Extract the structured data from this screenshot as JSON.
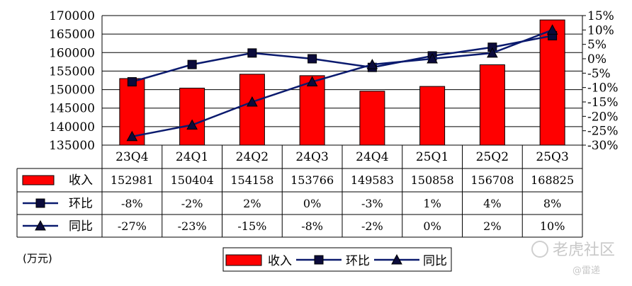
{
  "chart_data": {
    "type": "bar",
    "categories": [
      "23Q4",
      "24Q1",
      "24Q2",
      "24Q3",
      "24Q4",
      "25Q1",
      "25Q2",
      "25Q3"
    ],
    "series": [
      {
        "name": "收入",
        "type": "bar",
        "axis": "left",
        "color": "#ff0000",
        "values": [
          152981,
          150404,
          154158,
          153766,
          149583,
          150858,
          156708,
          168825
        ]
      },
      {
        "name": "环比",
        "type": "line",
        "axis": "right",
        "marker": "square",
        "color": "#0a1a6e",
        "values": [
          -8,
          -2,
          2,
          0,
          -3,
          1,
          4,
          8
        ]
      },
      {
        "name": "同比",
        "type": "line",
        "axis": "right",
        "marker": "triangle",
        "color": "#0a1a6e",
        "values": [
          -27,
          -23,
          -15,
          -8,
          -2,
          0,
          2,
          10
        ]
      }
    ],
    "y_left": {
      "min": 135000,
      "max": 170000,
      "step": 5000,
      "ticks": [
        "135000",
        "140000",
        "145000",
        "150000",
        "155000",
        "160000",
        "165000",
        "170000"
      ]
    },
    "y_right": {
      "min": -30,
      "max": 15,
      "step": 5,
      "ticks": [
        "-30%",
        "-25%",
        "-20%",
        "-15%",
        "-10%",
        "-5%",
        "0%",
        "5%",
        "10%",
        "15%"
      ]
    },
    "table": {
      "rows": [
        {
          "label": "收入",
          "cells": [
            "152981",
            "150404",
            "154158",
            "153766",
            "149583",
            "150858",
            "156708",
            "168825"
          ]
        },
        {
          "label": "环比",
          "cells": [
            "-8%",
            "-2%",
            "2%",
            "0%",
            "-3%",
            "1%",
            "4%",
            "8%"
          ]
        },
        {
          "label": "同比",
          "cells": [
            "-27%",
            "-23%",
            "-15%",
            "-8%",
            "-2%",
            "0%",
            "2%",
            "10%"
          ]
        }
      ]
    },
    "unit": "(万元)",
    "legend": {
      "position": "bottom",
      "items": [
        "收入",
        "环比",
        "同比"
      ]
    },
    "grid": true
  },
  "watermark": {
    "brand": "老虎社区",
    "author": "@雷递"
  }
}
